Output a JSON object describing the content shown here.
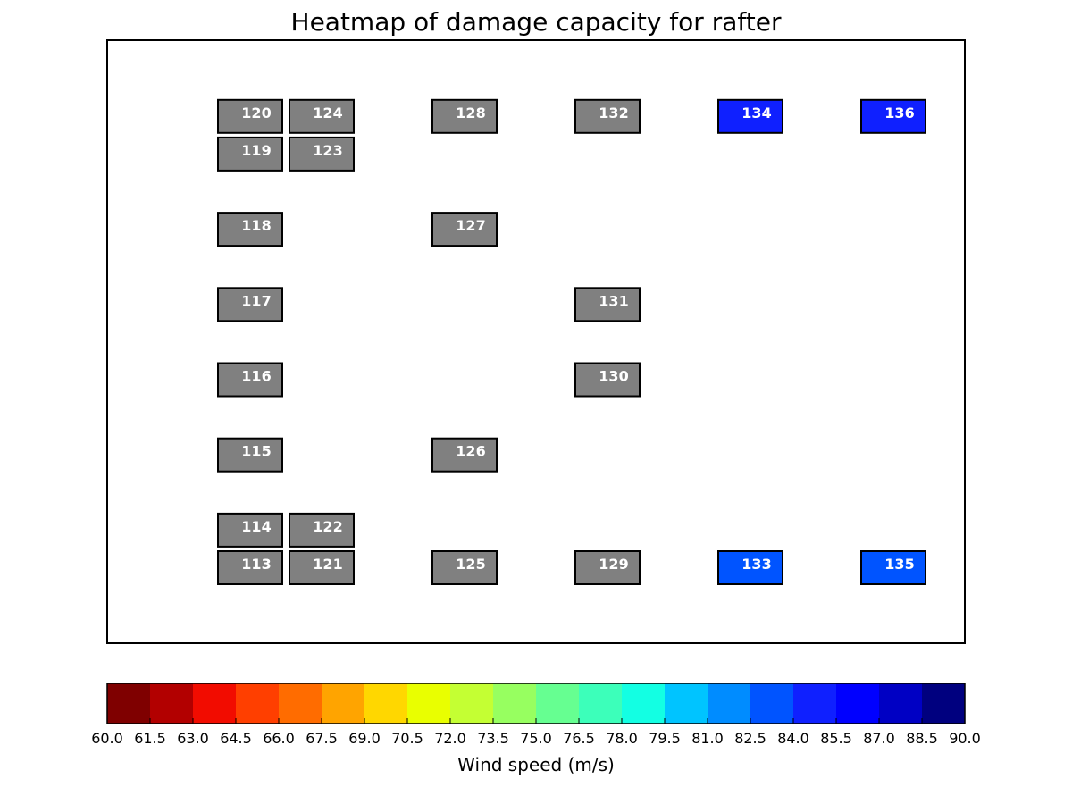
{
  "chart_data": {
    "type": "heatmap",
    "title": "Heatmap of damage capacity for rafter",
    "colorbar": {
      "label": "Wind speed (m/s)",
      "min": 60.0,
      "max": 90.0,
      "ticks": [
        "60.0",
        "61.5",
        "63.0",
        "64.5",
        "66.0",
        "67.5",
        "69.0",
        "70.5",
        "72.0",
        "73.5",
        "75.0",
        "76.5",
        "78.0",
        "79.5",
        "81.0",
        "82.5",
        "84.0",
        "85.5",
        "87.0",
        "88.5",
        "90.0"
      ],
      "colors": [
        "#7f0000",
        "#b20000",
        "#f20c00",
        "#ff3f00",
        "#ff6c00",
        "#ffa400",
        "#ffd700",
        "#e9ff00",
        "#c4ff33",
        "#97ff60",
        "#66ff91",
        "#3cffba",
        "#13ffe3",
        "#00c4ff",
        "#008cff",
        "#0054ff",
        "#0f20ff",
        "#0000ff",
        "#0000c4",
        "#00007f"
      ],
      "orientation": "horizontal",
      "placement": "bottom"
    },
    "no_data_color": "#808080",
    "cells": [
      {
        "id": "113",
        "col": 0,
        "row": 0.0,
        "value": null
      },
      {
        "id": "114",
        "col": 0,
        "row": 0.5,
        "value": null
      },
      {
        "id": "115",
        "col": 0,
        "row": 1.5,
        "value": null
      },
      {
        "id": "116",
        "col": 0,
        "row": 2.5,
        "value": null
      },
      {
        "id": "117",
        "col": 0,
        "row": 3.5,
        "value": null
      },
      {
        "id": "118",
        "col": 0,
        "row": 4.5,
        "value": null
      },
      {
        "id": "119",
        "col": 0,
        "row": 5.5,
        "value": null
      },
      {
        "id": "120",
        "col": 0,
        "row": 6.0,
        "value": null
      },
      {
        "id": "121",
        "col": 1,
        "row": 0.0,
        "value": null
      },
      {
        "id": "122",
        "col": 1,
        "row": 0.5,
        "value": null
      },
      {
        "id": "123",
        "col": 1,
        "row": 5.5,
        "value": null
      },
      {
        "id": "124",
        "col": 1,
        "row": 6.0,
        "value": null
      },
      {
        "id": "125",
        "col": 3,
        "row": 0.0,
        "value": null
      },
      {
        "id": "126",
        "col": 3,
        "row": 1.5,
        "value": null
      },
      {
        "id": "127",
        "col": 3,
        "row": 4.5,
        "value": null
      },
      {
        "id": "128",
        "col": 3,
        "row": 6.0,
        "value": null
      },
      {
        "id": "129",
        "col": 5,
        "row": 0.0,
        "value": null
      },
      {
        "id": "130",
        "col": 5,
        "row": 2.5,
        "value": null
      },
      {
        "id": "131",
        "col": 5,
        "row": 3.5,
        "value": null
      },
      {
        "id": "132",
        "col": 5,
        "row": 6.0,
        "value": null
      },
      {
        "id": "133",
        "col": 7,
        "row": 0.0,
        "value": 82.5
      },
      {
        "id": "134",
        "col": 7,
        "row": 6.0,
        "value": 84.0
      },
      {
        "id": "135",
        "col": 9,
        "row": 0.0,
        "value": 82.5
      },
      {
        "id": "136",
        "col": 9,
        "row": 6.0,
        "value": 84.0
      }
    ]
  }
}
